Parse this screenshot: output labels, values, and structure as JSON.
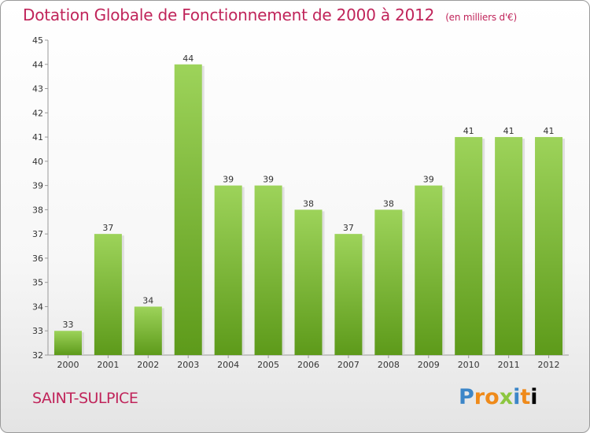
{
  "header": {
    "title": "Dotation Globale de Fonctionnement de 2000 à 2012",
    "subtitle": "(en milliers d'€)"
  },
  "footer": {
    "city": "SAINT-SULPICE",
    "logo_letters": [
      "P",
      "r",
      "o",
      "x",
      "i",
      "t",
      "i"
    ]
  },
  "colors": {
    "title": "#c0245a",
    "bar_top": "#9dd35a",
    "bar_bottom": "#5d9a1a"
  },
  "chart_data": {
    "type": "bar",
    "categories": [
      "2000",
      "2001",
      "2002",
      "2003",
      "2004",
      "2005",
      "2006",
      "2007",
      "2008",
      "2009",
      "2010",
      "2011",
      "2012"
    ],
    "values": [
      33,
      37,
      34,
      44,
      39,
      39,
      38,
      37,
      38,
      39,
      41,
      41,
      41
    ],
    "ylim": [
      32,
      45
    ],
    "yticks": [
      32,
      33,
      34,
      35,
      36,
      37,
      38,
      39,
      40,
      41,
      42,
      43,
      44,
      45
    ],
    "grid": false,
    "data_labels": true
  }
}
